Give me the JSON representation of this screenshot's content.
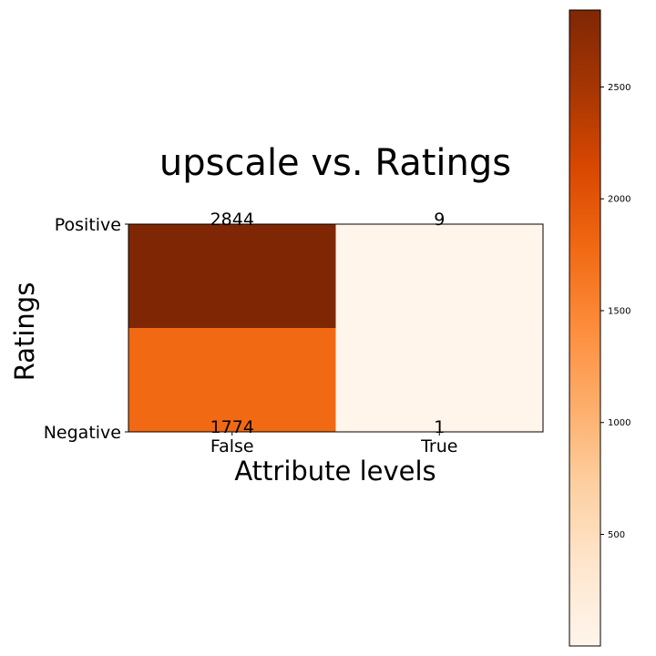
{
  "chart_data": {
    "type": "heatmap",
    "title": "upscale vs. Ratings",
    "xlabel": "Attribute levels",
    "ylabel": "Ratings",
    "x_categories": [
      "False",
      "True"
    ],
    "y_categories": [
      "Positive",
      "Negative"
    ],
    "values": [
      [
        2844,
        9
      ],
      [
        1774,
        1
      ]
    ],
    "colormap": "Oranges",
    "colorbar": {
      "min": 1,
      "max": 2844,
      "ticks": [
        500,
        1000,
        1500,
        2000,
        2500
      ]
    },
    "grid": false
  }
}
